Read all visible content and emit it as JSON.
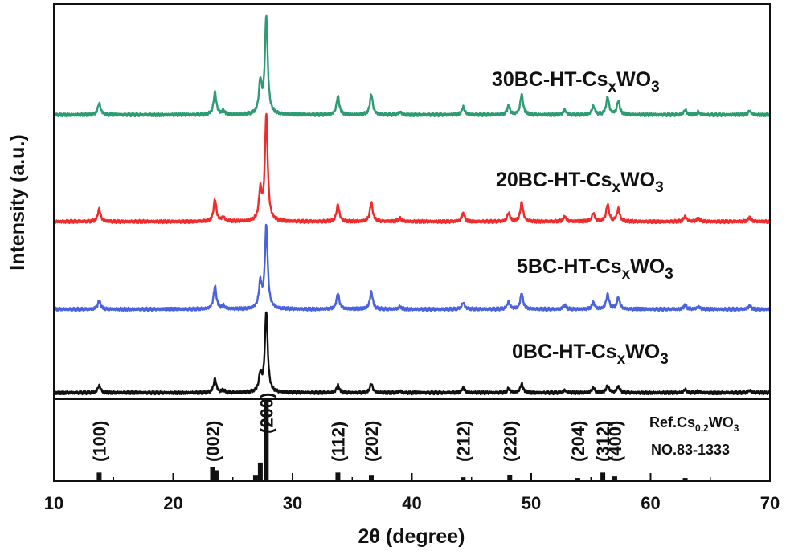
{
  "chart_data": {
    "type": "line",
    "xlabel": "2θ (degree)",
    "ylabel": "Intensity (a.u.)",
    "xlim": [
      10,
      70
    ],
    "xticks": [
      "10",
      "20",
      "30",
      "40",
      "50",
      "60",
      "70"
    ],
    "grid": false,
    "legend": "none",
    "peaks_2theta": [
      13.8,
      23.5,
      24.2,
      27.3,
      27.8,
      33.8,
      36.6,
      39.0,
      44.3,
      48.1,
      49.2,
      52.8,
      55.2,
      56.4,
      57.3,
      62.9,
      64.0,
      68.3
    ],
    "series": [
      {
        "name": "30BC-HT-Cs",
        "name_sub": "x",
        "name_mid": "WO",
        "name_sub2": "3",
        "color": "#2e9c72",
        "relative_intensities": [
          0.12,
          0.23,
          0.04,
          0.32,
          1.0,
          0.19,
          0.21,
          0.03,
          0.08,
          0.09,
          0.21,
          0.05,
          0.09,
          0.18,
          0.14,
          0.05,
          0.03,
          0.04
        ]
      },
      {
        "name": "20BC-HT-Cs",
        "name_sub": "x",
        "name_mid": "WO",
        "name_sub2": "3",
        "color": "#ef2b2b",
        "relative_intensities": [
          0.12,
          0.21,
          0.04,
          0.28,
          1.0,
          0.16,
          0.18,
          0.03,
          0.08,
          0.08,
          0.18,
          0.05,
          0.08,
          0.16,
          0.12,
          0.05,
          0.03,
          0.04
        ]
      },
      {
        "name": "5BC-HT-Cs",
        "name_sub": "x",
        "name_mid": "WO",
        "name_sub2": "3",
        "color": "#4a62dc",
        "relative_intensities": [
          0.1,
          0.28,
          0.04,
          0.31,
          1.0,
          0.19,
          0.21,
          0.03,
          0.08,
          0.09,
          0.19,
          0.05,
          0.08,
          0.18,
          0.14,
          0.05,
          0.03,
          0.04
        ]
      },
      {
        "name": "0BC-HT-Cs",
        "name_sub": "x",
        "name_mid": "WO",
        "name_sub2": "3",
        "color": "#111111",
        "relative_intensities": [
          0.09,
          0.17,
          0.03,
          0.21,
          1.0,
          0.09,
          0.11,
          0.02,
          0.06,
          0.05,
          0.11,
          0.03,
          0.06,
          0.09,
          0.08,
          0.04,
          0.02,
          0.03
        ]
      }
    ],
    "reference": {
      "name_prefix": "Ref.Cs",
      "name_sub": "0.2",
      "name_mid": "WO",
      "name_sub2": "3",
      "card": "NO.83-1333",
      "lines": [
        {
          "x": 13.8,
          "h": 0.09,
          "hkl": "(100)"
        },
        {
          "x": 23.3,
          "h": 0.16,
          "hkl": "(002)"
        },
        {
          "x": 23.6,
          "h": 0.12,
          "hkl": ""
        },
        {
          "x": 26.9,
          "h": 0.05,
          "hkl": ""
        },
        {
          "x": 27.3,
          "h": 0.22,
          "hkl": ""
        },
        {
          "x": 27.8,
          "h": 1.0,
          "hkl": "(200)"
        },
        {
          "x": 33.8,
          "h": 0.09,
          "hkl": "(112)"
        },
        {
          "x": 36.6,
          "h": 0.05,
          "hkl": "(202)"
        },
        {
          "x": 44.3,
          "h": 0.03,
          "hkl": "(212)"
        },
        {
          "x": 48.2,
          "h": 0.06,
          "hkl": "(220)"
        },
        {
          "x": 53.9,
          "h": 0.02,
          "hkl": "(204)"
        },
        {
          "x": 56.0,
          "h": 0.09,
          "hkl": "(312)"
        },
        {
          "x": 57.0,
          "h": 0.04,
          "hkl": "(400)"
        },
        {
          "x": 62.9,
          "h": 0.02,
          "hkl": ""
        }
      ]
    }
  }
}
